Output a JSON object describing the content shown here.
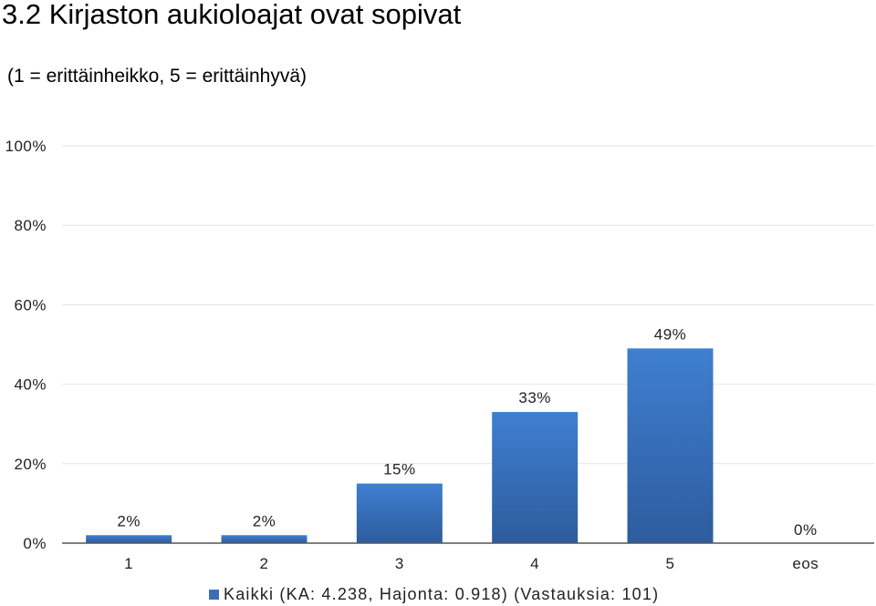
{
  "chart_data": {
    "type": "bar",
    "title": "3.2 Kirjaston aukioloajat ovat sopivat",
    "subtitle": "(1 = erittäinheikko, 5 = erittäinhyvä)",
    "categories": [
      "1",
      "2",
      "3",
      "4",
      "5",
      "eos"
    ],
    "series": [
      {
        "name": "Kaikki (KA: 4.238, Hajonta: 0.918) (Vastauksia: 101)",
        "values": [
          2,
          2,
          15,
          33,
          49,
          0
        ],
        "labels": [
          "2%",
          "2%",
          "15%",
          "33%",
          "49%",
          "0%"
        ]
      }
    ],
    "yticks": [
      "0%",
      "20%",
      "40%",
      "60%",
      "80%",
      "100%"
    ],
    "ylim": [
      0,
      100
    ],
    "grid": true,
    "legend_position": "bottom",
    "colors": {
      "bar_top": "#3f7fd0",
      "bar_bottom": "#2d5c9e",
      "grid": "#e3e3ec",
      "axis": "#555555"
    }
  }
}
